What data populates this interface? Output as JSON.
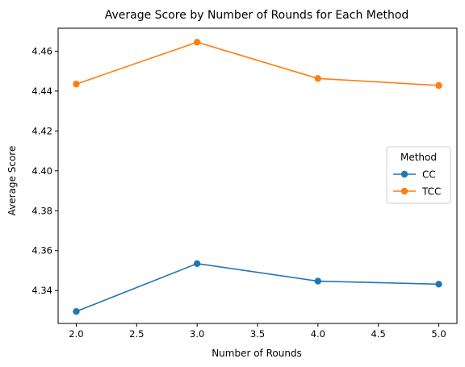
{
  "chart_data": {
    "type": "line",
    "title": "Average Score by Number of Rounds for Each Method",
    "xlabel": "Number of Rounds",
    "ylabel": "Average Score",
    "xlim": [
      1.85,
      5.15
    ],
    "ylim": [
      4.3235,
      4.4715
    ],
    "xticks": [
      2.0,
      2.5,
      3.0,
      3.5,
      4.0,
      4.5,
      5.0
    ],
    "xtick_labels": [
      "2.0",
      "2.5",
      "3.0",
      "3.5",
      "4.0",
      "4.5",
      "5.0"
    ],
    "yticks": [
      4.34,
      4.36,
      4.38,
      4.4,
      4.42,
      4.44,
      4.46
    ],
    "ytick_labels": [
      "4.34",
      "4.36",
      "4.38",
      "4.40",
      "4.42",
      "4.44",
      "4.46"
    ],
    "grid": false,
    "legend": {
      "title": "Method",
      "placement": "center-right"
    },
    "x": [
      2,
      3,
      4,
      5
    ],
    "series": [
      {
        "name": "CC",
        "color": "#1f77b4",
        "values": [
          4.3295,
          4.3535,
          4.3447,
          4.3432
        ]
      },
      {
        "name": "TCC",
        "color": "#ff7f0e",
        "values": [
          4.4435,
          4.4645,
          4.4463,
          4.4428
        ]
      }
    ]
  }
}
